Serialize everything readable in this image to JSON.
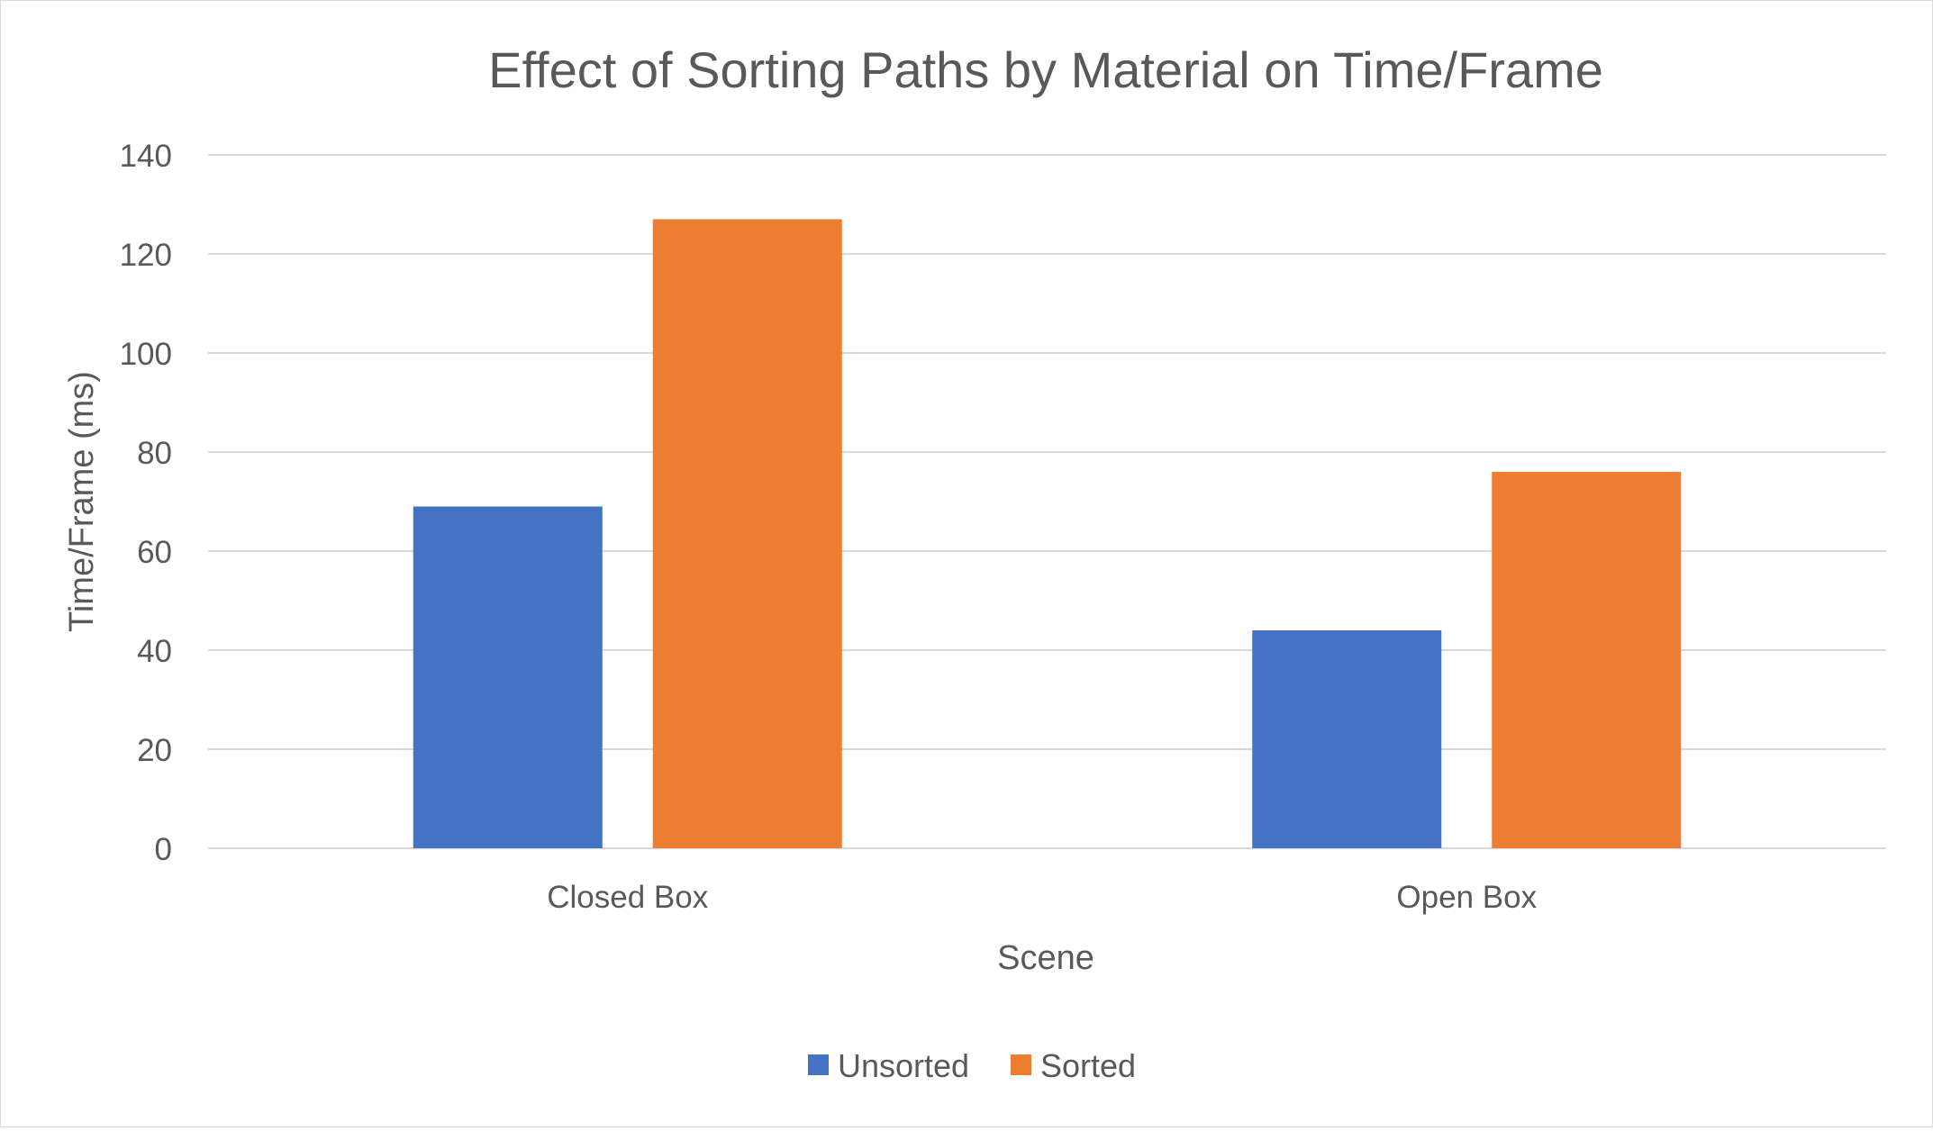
{
  "chart_data": {
    "type": "bar",
    "title": "Effect of Sorting Paths by Material on Time/Frame",
    "xlabel": "Scene",
    "ylabel": "Time/Frame (ms)",
    "categories": [
      "Closed Box",
      "Open Box"
    ],
    "series": [
      {
        "name": "Unsorted",
        "values": [
          69,
          44
        ],
        "color": "#4472c4"
      },
      {
        "name": "Sorted",
        "values": [
          127,
          76
        ],
        "color": "#ed7d31"
      }
    ],
    "ylim": [
      0,
      140
    ],
    "yticks": [
      "0",
      "20",
      "40",
      "60",
      "80",
      "100",
      "120",
      "140"
    ],
    "grid": true,
    "legend_position": "bottom"
  }
}
